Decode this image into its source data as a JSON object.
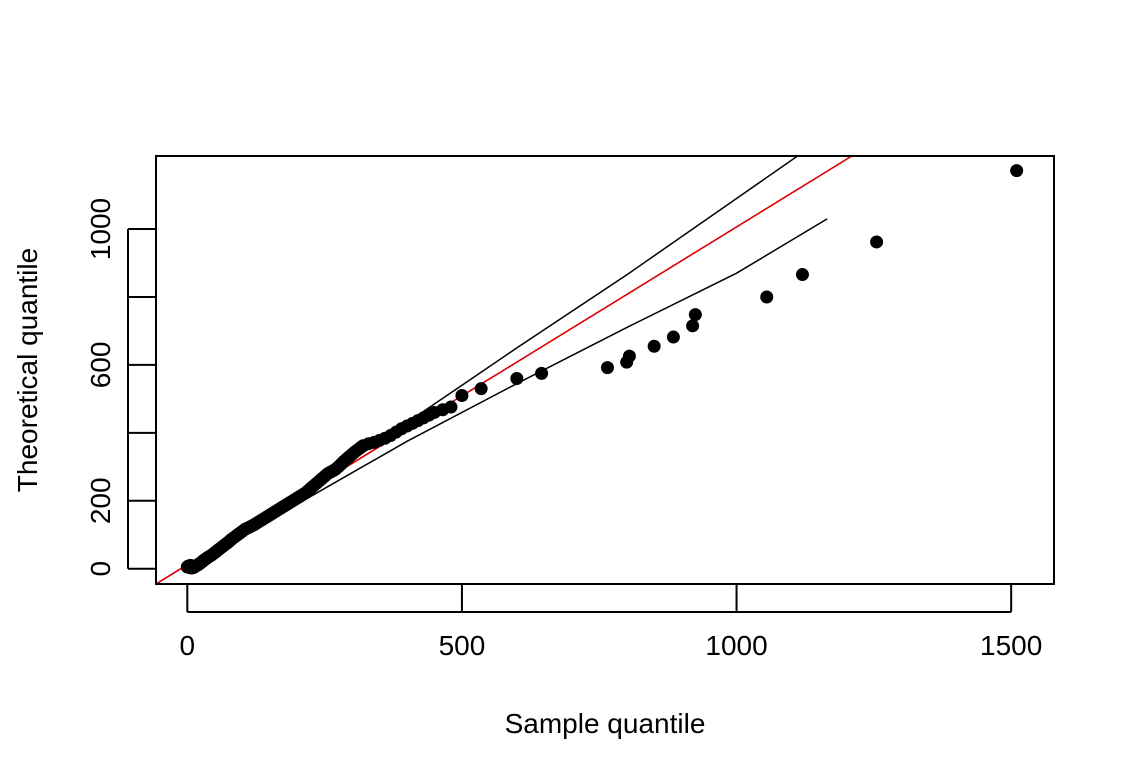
{
  "chart_data": {
    "type": "scatter",
    "title": "",
    "xlabel": "Sample quantile",
    "ylabel": "Theoretical quantile",
    "xlim": [
      -57,
      1578
    ],
    "ylim": [
      -45,
      1215
    ],
    "x_ticks": [
      0,
      500,
      1000,
      1500
    ],
    "x_tick_labels": [
      "0",
      "500",
      "1000",
      "1500"
    ],
    "y_ticks": [
      0,
      200,
      400,
      600,
      800,
      1000
    ],
    "y_tick_labels": [
      "0",
      "200",
      "",
      "600",
      "",
      "1000"
    ],
    "grid": false,
    "legend": "none",
    "points": [
      [
        0,
        5
      ],
      [
        2,
        8
      ],
      [
        4,
        3
      ],
      [
        6,
        10
      ],
      [
        8,
        2
      ],
      [
        10,
        6
      ],
      [
        12,
        4
      ],
      [
        15,
        8
      ],
      [
        18,
        10
      ],
      [
        20,
        12
      ],
      [
        22,
        15
      ],
      [
        25,
        18
      ],
      [
        28,
        22
      ],
      [
        30,
        25
      ],
      [
        33,
        28
      ],
      [
        36,
        32
      ],
      [
        40,
        36
      ],
      [
        44,
        40
      ],
      [
        48,
        45
      ],
      [
        52,
        50
      ],
      [
        56,
        55
      ],
      [
        60,
        60
      ],
      [
        64,
        65
      ],
      [
        68,
        70
      ],
      [
        72,
        75
      ],
      [
        76,
        80
      ],
      [
        80,
        86
      ],
      [
        85,
        92
      ],
      [
        90,
        98
      ],
      [
        95,
        104
      ],
      [
        100,
        110
      ],
      [
        105,
        116
      ],
      [
        110,
        120
      ],
      [
        115,
        124
      ],
      [
        120,
        128
      ],
      [
        125,
        133
      ],
      [
        130,
        138
      ],
      [
        135,
        143
      ],
      [
        140,
        148
      ],
      [
        145,
        153
      ],
      [
        150,
        158
      ],
      [
        155,
        163
      ],
      [
        160,
        168
      ],
      [
        165,
        173
      ],
      [
        170,
        178
      ],
      [
        175,
        183
      ],
      [
        180,
        188
      ],
      [
        185,
        193
      ],
      [
        190,
        198
      ],
      [
        195,
        203
      ],
      [
        200,
        208
      ],
      [
        205,
        213
      ],
      [
        210,
        218
      ],
      [
        215,
        223
      ],
      [
        220,
        230
      ],
      [
        225,
        237
      ],
      [
        230,
        244
      ],
      [
        235,
        251
      ],
      [
        240,
        258
      ],
      [
        245,
        265
      ],
      [
        250,
        272
      ],
      [
        255,
        279
      ],
      [
        260,
        284
      ],
      [
        265,
        288
      ],
      [
        270,
        293
      ],
      [
        275,
        300
      ],
      [
        280,
        308
      ],
      [
        285,
        316
      ],
      [
        290,
        323
      ],
      [
        295,
        330
      ],
      [
        300,
        337
      ],
      [
        305,
        344
      ],
      [
        310,
        350
      ],
      [
        315,
        356
      ],
      [
        320,
        362
      ],
      [
        330,
        368
      ],
      [
        340,
        372
      ],
      [
        350,
        378
      ],
      [
        360,
        384
      ],
      [
        370,
        392
      ],
      [
        380,
        402
      ],
      [
        390,
        412
      ],
      [
        400,
        420
      ],
      [
        410,
        428
      ],
      [
        420,
        436
      ],
      [
        430,
        444
      ],
      [
        440,
        452
      ],
      [
        450,
        460
      ],
      [
        465,
        468
      ],
      [
        480,
        476
      ],
      [
        500,
        510
      ],
      [
        535,
        530
      ],
      [
        600,
        560
      ],
      [
        645,
        575
      ],
      [
        765,
        592
      ],
      [
        800,
        608
      ],
      [
        805,
        626
      ],
      [
        850,
        655
      ],
      [
        885,
        682
      ],
      [
        920,
        715
      ],
      [
        925,
        748
      ],
      [
        1055,
        800
      ],
      [
        1120,
        866
      ],
      [
        1255,
        962
      ],
      [
        1510,
        1172
      ]
    ],
    "reference_line": {
      "color": "#dd0000",
      "x": [
        -57,
        1210
      ],
      "y": [
        -45,
        1215
      ]
    },
    "envelope_upper": {
      "color": "#000000",
      "x": [
        0,
        200,
        400,
        600,
        800,
        1000,
        1160
      ],
      "y": [
        0,
        210,
        430,
        650,
        865,
        1090,
        1270
      ]
    },
    "envelope_lower": {
      "color": "#000000",
      "x": [
        0,
        200,
        400,
        600,
        800,
        1000,
        1165
      ],
      "y": [
        0,
        190,
        375,
        545,
        710,
        870,
        1030
      ]
    },
    "point_color": "#000000"
  }
}
